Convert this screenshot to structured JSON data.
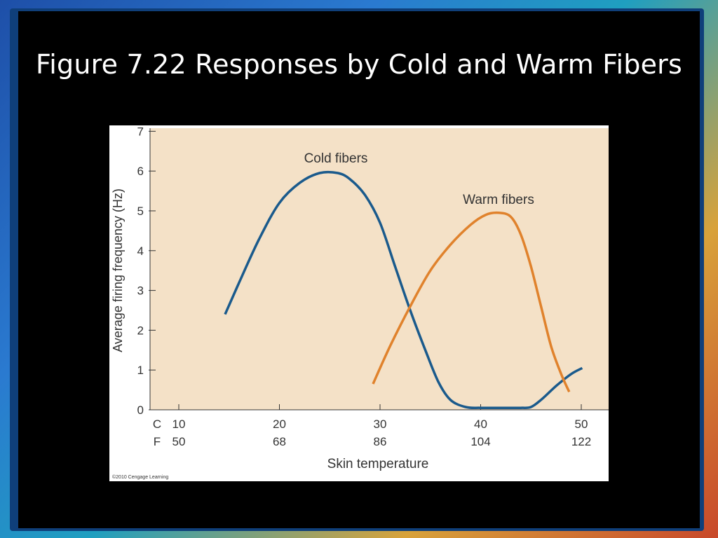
{
  "slide": {
    "title": "Figure 7.22 Responses by Cold and Warm Fibers"
  },
  "copyright": "©2010 Cengage Learning",
  "colors": {
    "plot_background": "#f4e1c7",
    "cold_series": "#1a5a8c",
    "warm_series": "#e0822c",
    "slide_background": "#000000",
    "title_text": "#ffffff"
  },
  "chart_data": {
    "type": "line",
    "ylabel": "Average firing frequency (Hz)",
    "xlabel": "Skin temperature",
    "ylim": [
      0,
      7
    ],
    "xlim": [
      10,
      50
    ],
    "y_ticks": [
      0,
      1,
      2,
      3,
      4,
      5,
      6,
      7
    ],
    "x_ticks": [
      {
        "c": "10",
        "f": "50"
      },
      {
        "c": "20",
        "f": "68"
      },
      {
        "c": "30",
        "f": "86"
      },
      {
        "c": "40",
        "f": "104"
      },
      {
        "c": "50",
        "f": "122"
      }
    ],
    "x_unit_labels": {
      "c": "C",
      "f": "F"
    },
    "grid": false,
    "series": [
      {
        "name": "Cold fibers",
        "color": "#1a5a8c",
        "points": [
          [
            14.6,
            2.4
          ],
          [
            16,
            3.2
          ],
          [
            18,
            4.3
          ],
          [
            20,
            5.2
          ],
          [
            22,
            5.7
          ],
          [
            24,
            5.95
          ],
          [
            25.8,
            5.95
          ],
          [
            27,
            5.8
          ],
          [
            28.5,
            5.4
          ],
          [
            30,
            4.7
          ],
          [
            31.5,
            3.6
          ],
          [
            33,
            2.5
          ],
          [
            34.5,
            1.5
          ],
          [
            35.8,
            0.7
          ],
          [
            37,
            0.25
          ],
          [
            38.5,
            0.07
          ],
          [
            40,
            0.05
          ],
          [
            42,
            0.05
          ],
          [
            44,
            0.05
          ],
          [
            45,
            0.07
          ],
          [
            46,
            0.25
          ],
          [
            47.5,
            0.6
          ],
          [
            49,
            0.9
          ],
          [
            50.1,
            1.05
          ]
        ]
      },
      {
        "name": "Warm fibers",
        "color": "#e0822c",
        "points": [
          [
            29.3,
            0.65
          ],
          [
            31,
            1.6
          ],
          [
            33,
            2.6
          ],
          [
            35,
            3.5
          ],
          [
            37,
            4.15
          ],
          [
            39,
            4.65
          ],
          [
            40.5,
            4.9
          ],
          [
            41.8,
            4.95
          ],
          [
            43,
            4.85
          ],
          [
            44,
            4.4
          ],
          [
            45,
            3.6
          ],
          [
            46,
            2.6
          ],
          [
            47,
            1.6
          ],
          [
            48,
            0.9
          ],
          [
            48.8,
            0.45
          ]
        ]
      }
    ]
  }
}
